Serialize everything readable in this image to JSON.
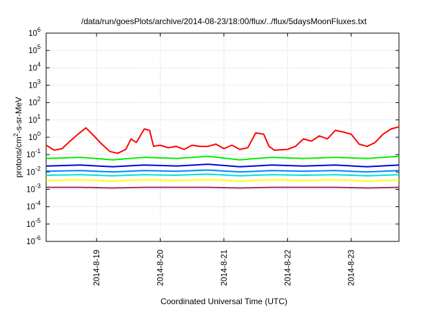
{
  "chart_data": {
    "type": "line",
    "title": "/data/run/goesPlots/archive/2014-08-23/18:00/flux/../flux/5daysMoonFluxes.txt",
    "xlabel": "Coordinated Universal Time (UTC)",
    "ylabel": {
      "prefix": "protons/cm",
      "sup": "2",
      "suffix": "-s-sr-MeV"
    },
    "y_scale": "log",
    "ylim": [
      1e-06,
      1000000.0
    ],
    "xlim": [
      "2014-08-18 05:00",
      "2014-08-23 18:00"
    ],
    "y_ticks": [
      {
        "value": 1e-06,
        "base": "10",
        "exp": "-6"
      },
      {
        "value": 1e-05,
        "base": "10",
        "exp": "-5"
      },
      {
        "value": 0.0001,
        "base": "10",
        "exp": "-4"
      },
      {
        "value": 0.001,
        "base": "10",
        "exp": "-3"
      },
      {
        "value": 0.01,
        "base": "10",
        "exp": "-2"
      },
      {
        "value": 0.1,
        "base": "10",
        "exp": "-1"
      },
      {
        "value": 1,
        "base": "10",
        "exp": "0"
      },
      {
        "value": 10,
        "base": "10",
        "exp": "1"
      },
      {
        "value": 100,
        "base": "10",
        "exp": "2"
      },
      {
        "value": 1000,
        "base": "10",
        "exp": "3"
      },
      {
        "value": 10000,
        "base": "10",
        "exp": "4"
      },
      {
        "value": 100000,
        "base": "10",
        "exp": "5"
      },
      {
        "value": 1000000,
        "base": "10",
        "exp": "6"
      }
    ],
    "x_ticks": [
      {
        "value": "2014-08-19 00:00",
        "label": "2014-8-19"
      },
      {
        "value": "2014-08-20 00:00",
        "label": "2014-8-20"
      },
      {
        "value": "2014-08-21 00:00",
        "label": "2014-8-21"
      },
      {
        "value": "2014-08-22 00:00",
        "label": "2014-8-22"
      },
      {
        "value": "2014-08-23 00:00",
        "label": "2014-8-23"
      }
    ],
    "grid": true,
    "series": [
      {
        "color": "#ff0000",
        "x": [
          "2014-08-18 05:00",
          "2014-08-18 08:00",
          "2014-08-18 11:00",
          "2014-08-18 14:00",
          "2014-08-18 17:00",
          "2014-08-18 20:00",
          "2014-08-18 23:00",
          "2014-08-19 02:00",
          "2014-08-19 05:00",
          "2014-08-19 08:00",
          "2014-08-19 11:00",
          "2014-08-19 13:00",
          "2014-08-19 15:00",
          "2014-08-19 18:00",
          "2014-08-19 20:00",
          "2014-08-19 21:30",
          "2014-08-20 00:00",
          "2014-08-20 03:00",
          "2014-08-20 06:00",
          "2014-08-20 09:00",
          "2014-08-20 12:00",
          "2014-08-20 15:00",
          "2014-08-20 18:00",
          "2014-08-20 21:00",
          "2014-08-21 00:00",
          "2014-08-21 03:00",
          "2014-08-21 06:00",
          "2014-08-21 09:00",
          "2014-08-21 12:00",
          "2014-08-21 15:00",
          "2014-08-21 17:00",
          "2014-08-21 19:00",
          "2014-08-22 00:00",
          "2014-08-22 03:00",
          "2014-08-22 06:00",
          "2014-08-22 09:00",
          "2014-08-22 12:00",
          "2014-08-22 15:00",
          "2014-08-22 18:00",
          "2014-08-22 21:00",
          "2014-08-23 00:00",
          "2014-08-23 03:00",
          "2014-08-23 06:00",
          "2014-08-23 09:00",
          "2014-08-23 12:00",
          "2014-08-23 15:00",
          "2014-08-23 18:00"
        ],
        "values": [
          0.35,
          0.18,
          0.22,
          0.6,
          1.5,
          3.5,
          1.2,
          0.4,
          0.15,
          0.12,
          0.2,
          0.8,
          0.5,
          3.0,
          2.5,
          0.3,
          0.35,
          0.25,
          0.3,
          0.2,
          0.35,
          0.3,
          0.3,
          0.4,
          0.22,
          0.35,
          0.2,
          0.25,
          1.8,
          1.5,
          0.3,
          0.18,
          0.2,
          0.3,
          0.8,
          0.6,
          1.2,
          0.8,
          2.5,
          2.0,
          1.5,
          0.4,
          0.3,
          0.5,
          1.5,
          3.0,
          4.0
        ]
      },
      {
        "color": "#00ee00",
        "x": [
          "2014-08-18 05:00",
          "2014-08-18 18:00",
          "2014-08-19 06:00",
          "2014-08-19 18:00",
          "2014-08-20 06:00",
          "2014-08-20 18:00",
          "2014-08-21 06:00",
          "2014-08-21 18:00",
          "2014-08-22 06:00",
          "2014-08-22 18:00",
          "2014-08-23 06:00",
          "2014-08-23 18:00"
        ],
        "values": [
          0.06,
          0.07,
          0.05,
          0.07,
          0.06,
          0.08,
          0.05,
          0.07,
          0.06,
          0.07,
          0.06,
          0.08
        ]
      },
      {
        "color": "#0000dd",
        "x": [
          "2014-08-18 05:00",
          "2014-08-18 18:00",
          "2014-08-19 06:00",
          "2014-08-19 18:00",
          "2014-08-20 06:00",
          "2014-08-20 18:00",
          "2014-08-21 06:00",
          "2014-08-21 18:00",
          "2014-08-22 06:00",
          "2014-08-22 18:00",
          "2014-08-23 06:00",
          "2014-08-23 18:00"
        ],
        "values": [
          0.022,
          0.025,
          0.02,
          0.025,
          0.022,
          0.028,
          0.02,
          0.025,
          0.022,
          0.025,
          0.02,
          0.025
        ]
      },
      {
        "color": "#0088ff",
        "x": [
          "2014-08-18 05:00",
          "2014-08-18 18:00",
          "2014-08-19 06:00",
          "2014-08-19 18:00",
          "2014-08-20 06:00",
          "2014-08-20 18:00",
          "2014-08-21 06:00",
          "2014-08-21 18:00",
          "2014-08-22 06:00",
          "2014-08-22 18:00",
          "2014-08-23 06:00",
          "2014-08-23 18:00"
        ],
        "values": [
          0.011,
          0.012,
          0.01,
          0.012,
          0.011,
          0.013,
          0.01,
          0.012,
          0.011,
          0.012,
          0.01,
          0.012
        ]
      },
      {
        "color": "#00dddd",
        "x": [
          "2014-08-18 05:00",
          "2014-08-18 18:00",
          "2014-08-19 06:00",
          "2014-08-19 18:00",
          "2014-08-20 06:00",
          "2014-08-20 18:00",
          "2014-08-21 06:00",
          "2014-08-21 18:00",
          "2014-08-22 06:00",
          "2014-08-22 18:00",
          "2014-08-23 06:00",
          "2014-08-23 18:00"
        ],
        "values": [
          0.0065,
          0.007,
          0.006,
          0.007,
          0.0065,
          0.0075,
          0.006,
          0.007,
          0.0065,
          0.007,
          0.006,
          0.007
        ]
      },
      {
        "color": "#ffff00",
        "x": [
          "2014-08-18 05:00",
          "2014-08-18 18:00",
          "2014-08-19 06:00",
          "2014-08-19 18:00",
          "2014-08-20 06:00",
          "2014-08-20 18:00",
          "2014-08-21 06:00",
          "2014-08-21 18:00",
          "2014-08-22 06:00",
          "2014-08-22 18:00",
          "2014-08-23 06:00",
          "2014-08-23 18:00"
        ],
        "values": [
          0.0032,
          0.0035,
          0.003,
          0.0035,
          0.0032,
          0.0036,
          0.003,
          0.0035,
          0.0032,
          0.0035,
          0.003,
          0.0034
        ]
      },
      {
        "color": "#993366",
        "x": [
          "2014-08-18 05:00",
          "2014-08-18 18:00",
          "2014-08-19 06:00",
          "2014-08-19 18:00",
          "2014-08-20 06:00",
          "2014-08-20 18:00",
          "2014-08-21 06:00",
          "2014-08-21 18:00",
          "2014-08-22 06:00",
          "2014-08-22 18:00",
          "2014-08-23 06:00",
          "2014-08-23 18:00"
        ],
        "values": [
          0.0013,
          0.0013,
          0.0012,
          0.0013,
          0.0013,
          0.0013,
          0.0012,
          0.0013,
          0.0013,
          0.0013,
          0.0012,
          0.0013
        ]
      }
    ]
  }
}
